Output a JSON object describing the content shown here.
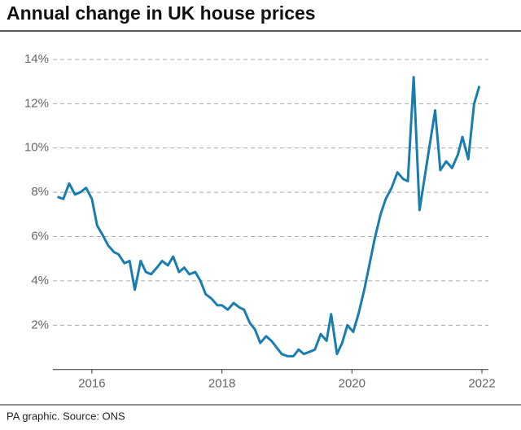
{
  "chart_data": {
    "type": "line",
    "title": "Annual change in UK house prices",
    "source": "PA graphic. Source: ONS",
    "xlim": [
      2015.4,
      2022.1
    ],
    "xticks": [
      2016,
      2018,
      2020,
      2022
    ],
    "ylim": [
      0,
      14
    ],
    "yticks": [
      {
        "value": 2,
        "label": "2%"
      },
      {
        "value": 4,
        "label": "4%"
      },
      {
        "value": 6,
        "label": "6%"
      },
      {
        "value": 8,
        "label": "8%"
      },
      {
        "value": 10,
        "label": "10%"
      },
      {
        "value": 12,
        "label": "12%"
      },
      {
        "value": 14,
        "label": "14%"
      }
    ],
    "grid": true,
    "series": [
      {
        "color": "#1a7db0",
        "x": [
          2015.47,
          2015.56,
          2015.65,
          2015.74,
          2015.82,
          2015.91,
          2016.0,
          2016.08,
          2016.16,
          2016.25,
          2016.34,
          2016.41,
          2016.5,
          2016.58,
          2016.66,
          2016.75,
          2016.83,
          2016.91,
          2017.0,
          2017.08,
          2017.17,
          2017.25,
          2017.34,
          2017.42,
          2017.5,
          2017.59,
          2017.67,
          2017.75,
          2017.84,
          2017.93,
          2018.0,
          2018.09,
          2018.18,
          2018.27,
          2018.34,
          2018.43,
          2018.51,
          2018.59,
          2018.68,
          2018.76,
          2018.84,
          2018.92,
          2019.01,
          2019.1,
          2019.18,
          2019.26,
          2019.35,
          2019.43,
          2019.52,
          2019.61,
          2019.68,
          2019.77,
          2019.85,
          2019.93,
          2020.02,
          2020.1,
          2020.19,
          2020.26,
          2020.35,
          2020.44,
          2020.52,
          2020.61,
          2020.7,
          2020.79,
          2020.86,
          2020.95,
          2021.04,
          2021.28,
          2021.36,
          2021.45,
          2021.54,
          2021.63,
          2021.7,
          2021.79,
          2021.88,
          2021.96
        ],
        "values": [
          7.8,
          7.7,
          8.4,
          7.9,
          8.0,
          8.2,
          7.7,
          6.5,
          6.1,
          5.6,
          5.3,
          5.2,
          4.8,
          4.9,
          3.6,
          4.9,
          4.4,
          4.3,
          4.6,
          4.9,
          4.7,
          5.1,
          4.4,
          4.6,
          4.3,
          4.4,
          4.0,
          3.4,
          3.2,
          2.9,
          2.9,
          2.7,
          3.0,
          2.8,
          2.7,
          2.1,
          1.8,
          1.2,
          1.5,
          1.3,
          1.0,
          0.7,
          0.6,
          0.6,
          0.9,
          0.7,
          0.8,
          0.9,
          1.6,
          1.3,
          2.5,
          0.7,
          1.2,
          2.0,
          1.7,
          2.5,
          3.6,
          4.6,
          5.9,
          7.0,
          7.7,
          8.2,
          8.9,
          8.6,
          8.5,
          13.2,
          7.2,
          11.7,
          9.0,
          9.4,
          9.1,
          9.7,
          10.5,
          9.5,
          12.0,
          12.8
        ]
      }
    ]
  }
}
